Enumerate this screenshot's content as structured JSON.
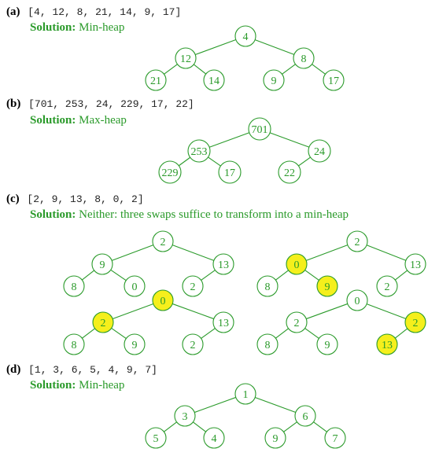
{
  "solution_label": "Solution:",
  "colors": {
    "edge": "#2a9a2a",
    "node_fill": "#ffffff",
    "highlight": "#f5ef1c",
    "text": "#2a9a2a"
  },
  "parts": [
    {
      "label": "(a)",
      "array": "[4, 12, 8, 21, 14, 9, 17]",
      "solution": "Min-heap",
      "trees": [
        {
          "nodes": [
            "4",
            "12",
            "8",
            "21",
            "14",
            "9",
            "17"
          ],
          "highlight": []
        }
      ]
    },
    {
      "label": "(b)",
      "array": "[701, 253, 24, 229, 17, 22]",
      "solution": "Max-heap",
      "trees": [
        {
          "nodes": [
            "701",
            "253",
            "24",
            "229",
            "17",
            "22"
          ],
          "highlight": []
        }
      ]
    },
    {
      "label": "(c)",
      "array": "[2, 9, 13, 8, 0, 2]",
      "solution": "Neither: three swaps suffice to transform into a min-heap",
      "trees": [
        {
          "nodes": [
            "2",
            "9",
            "13",
            "8",
            "0",
            "2"
          ],
          "highlight": []
        },
        {
          "nodes": [
            "2",
            "0",
            "13",
            "8",
            "9",
            "2"
          ],
          "highlight": [
            1,
            4
          ]
        },
        {
          "nodes": [
            "0",
            "2",
            "13",
            "8",
            "9",
            "2"
          ],
          "highlight": [
            0,
            1
          ]
        },
        {
          "nodes": [
            "0",
            "2",
            "2",
            "8",
            "9",
            "13"
          ],
          "highlight": [
            2,
            5
          ]
        }
      ]
    },
    {
      "label": "(d)",
      "array": "[1, 3, 6, 5, 4, 9, 7]",
      "solution": "Min-heap",
      "trees": [
        {
          "nodes": [
            "1",
            "3",
            "6",
            "5",
            "4",
            "9",
            "7"
          ],
          "highlight": []
        }
      ]
    }
  ]
}
